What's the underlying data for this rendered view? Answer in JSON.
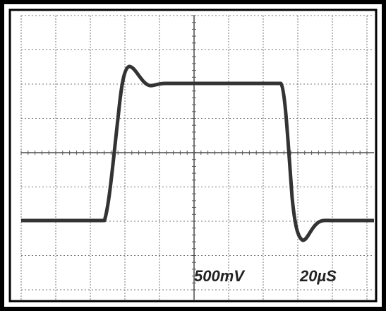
{
  "labels": {
    "volts_per_div": "500mV",
    "time_per_div": "20µS"
  }
}
